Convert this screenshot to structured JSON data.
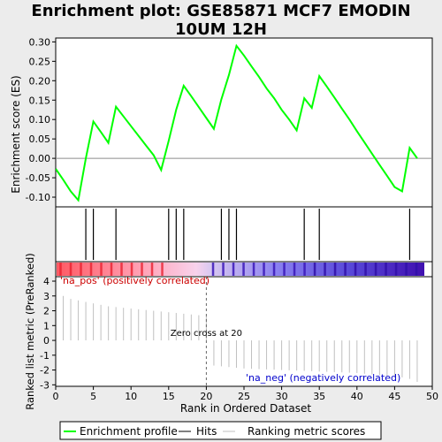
{
  "title_line1": "Enrichment plot: GSE85871 MCF7 EMODIN",
  "title_line2": "10UM 12H",
  "chart_data": {
    "type": "line",
    "title": "Enrichment plot: GSE85871 MCF7 EMODIN 10UM 12H",
    "xlabel": "Rank in Ordered Dataset",
    "xlim": [
      0,
      50
    ],
    "x_ticks": [
      0,
      5,
      10,
      15,
      20,
      25,
      30,
      35,
      40,
      45,
      50
    ],
    "es_panel": {
      "ylabel": "Enrichment score (ES)",
      "ylim": [
        -0.125,
        0.31
      ],
      "y_ticks": [
        -0.1,
        -0.05,
        0.0,
        0.05,
        0.1,
        0.15,
        0.2,
        0.25,
        0.3
      ],
      "y_tick_labels": [
        "-0.10",
        "-0.05",
        "0.00",
        "0.05",
        "0.10",
        "0.15",
        "0.20",
        "0.25",
        "0.30"
      ],
      "series": [
        {
          "name": "Enrichment profile",
          "color": "#00ff00",
          "x": [
            0,
            1,
            2,
            3,
            4,
            5,
            6,
            7,
            8,
            9,
            10,
            11,
            12,
            13,
            14,
            15,
            16,
            17,
            18,
            19,
            20,
            21,
            22,
            23,
            24,
            25,
            26,
            27,
            28,
            29,
            30,
            31,
            32,
            33,
            34,
            35,
            36,
            37,
            38,
            39,
            40,
            41,
            42,
            43,
            44,
            45,
            46,
            47,
            48
          ],
          "y": [
            -0.027,
            -0.055,
            -0.085,
            -0.108,
            0.0,
            0.095,
            0.068,
            0.04,
            0.133,
            0.108,
            0.083,
            0.058,
            0.033,
            0.008,
            -0.03,
            0.045,
            0.125,
            0.187,
            0.16,
            0.132,
            0.104,
            0.076,
            0.152,
            0.215,
            0.29,
            0.265,
            0.237,
            0.21,
            0.18,
            0.155,
            0.125,
            0.1,
            0.072,
            0.155,
            0.13,
            0.212,
            0.185,
            0.157,
            0.128,
            0.1,
            0.07,
            0.041,
            0.012,
            -0.017,
            -0.045,
            -0.074,
            -0.085,
            0.027,
            0.0
          ]
        }
      ]
    },
    "hits": {
      "name": "Hits",
      "x": [
        4,
        5,
        8,
        15,
        16,
        17,
        22,
        23,
        24,
        33,
        35,
        47
      ]
    },
    "ranking_panel": {
      "ylabel": "Ranked list metric (PreRanked)",
      "ylim": [
        -3.1,
        4.3
      ],
      "y_ticks": [
        -3,
        -2,
        -1,
        0,
        1,
        2,
        3,
        4
      ],
      "y_tick_labels": [
        "-3",
        "-2",
        "-1",
        "0",
        "1",
        "2",
        "3",
        "4"
      ],
      "series": [
        {
          "name": "Ranking metric scores",
          "color": "#c0c0c0",
          "x": [
            1,
            2,
            3,
            4,
            5,
            6,
            7,
            8,
            9,
            10,
            11,
            12,
            13,
            14,
            15,
            16,
            17,
            18,
            19,
            20,
            21,
            22,
            23,
            24,
            25,
            26,
            27,
            28,
            29,
            30,
            31,
            32,
            33,
            34,
            35,
            36,
            37,
            38,
            39,
            40,
            41,
            42,
            43,
            44,
            45,
            46,
            47,
            48
          ],
          "values": [
            3.0,
            2.8,
            2.7,
            2.6,
            2.5,
            2.4,
            2.3,
            2.25,
            2.2,
            2.15,
            2.1,
            2.05,
            2.0,
            1.95,
            1.9,
            1.85,
            1.8,
            1.75,
            1.7,
            1.65,
            -1.7,
            -1.75,
            -1.8,
            -1.85,
            -1.9,
            -1.92,
            -1.94,
            -1.96,
            -1.98,
            -2.0,
            -2.02,
            -2.04,
            -2.06,
            -2.08,
            -2.1,
            -2.12,
            -2.14,
            -2.16,
            -2.18,
            -2.2,
            -2.25,
            -2.3,
            -2.35,
            -2.4,
            -2.45,
            -2.5,
            -2.6,
            -2.8
          ]
        }
      ],
      "annotations": {
        "pos_label": "'na_pos' (positively correlated)",
        "neg_label": "'na_neg' (negatively correlated)",
        "zero_cross_label": "Zero cross at 20",
        "zero_cross_x": 20
      }
    },
    "legend": {
      "placement": "bottom",
      "entries": [
        "Enrichment profile",
        "Hits",
        "Ranking metric scores"
      ]
    },
    "grid": false
  },
  "colors": {
    "profile": "#00ff00",
    "hits": "#000000",
    "metric": "#c0c0c0",
    "pos_label": "#cc0000",
    "neg_label": "#0000cc",
    "background": "#ececec"
  }
}
